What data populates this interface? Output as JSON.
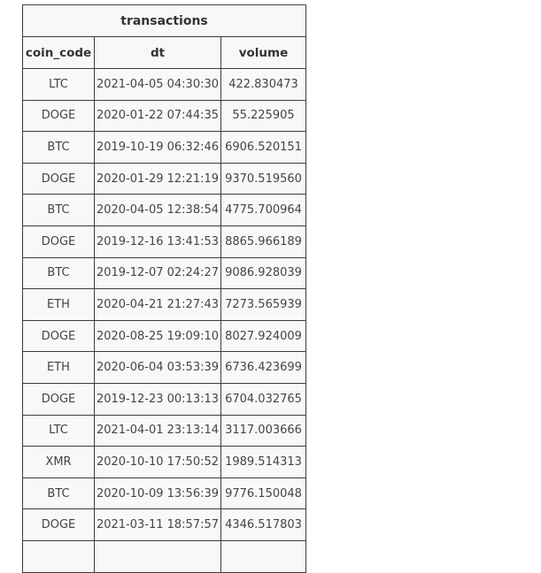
{
  "table": {
    "title": "transactions",
    "columns": [
      "coin_code",
      "dt",
      "volume"
    ],
    "rows": [
      [
        "LTC",
        "2021-04-05 04:30:30",
        "422.830473"
      ],
      [
        "DOGE",
        "2020-01-22 07:44:35",
        "55.225905"
      ],
      [
        "BTC",
        "2019-10-19 06:32:46",
        "6906.520151"
      ],
      [
        "DOGE",
        "2020-01-29 12:21:19",
        "9370.519560"
      ],
      [
        "BTC",
        "2020-04-05 12:38:54",
        "4775.700964"
      ],
      [
        "DOGE",
        "2019-12-16 13:41:53",
        "8865.966189"
      ],
      [
        "BTC",
        "2019-12-07 02:24:27",
        "9086.928039"
      ],
      [
        "ETH",
        "2020-04-21 21:27:43",
        "7273.565939"
      ],
      [
        "DOGE",
        "2020-08-25 19:09:10",
        "8027.924009"
      ],
      [
        "ETH",
        "2020-06-04 03:53:39",
        "6736.423699"
      ],
      [
        "DOGE",
        "2019-12-23 00:13:13",
        "6704.032765"
      ],
      [
        "LTC",
        "2021-04-01 23:13:14",
        "3117.003666"
      ],
      [
        "XMR",
        "2020-10-10 17:50:52",
        "1989.514313"
      ],
      [
        "BTC",
        "2020-10-09 13:56:39",
        "9776.150048"
      ],
      [
        "DOGE",
        "2021-03-11 18:57:57",
        "4346.517803"
      ],
      [
        "",
        "",
        ""
      ]
    ]
  }
}
